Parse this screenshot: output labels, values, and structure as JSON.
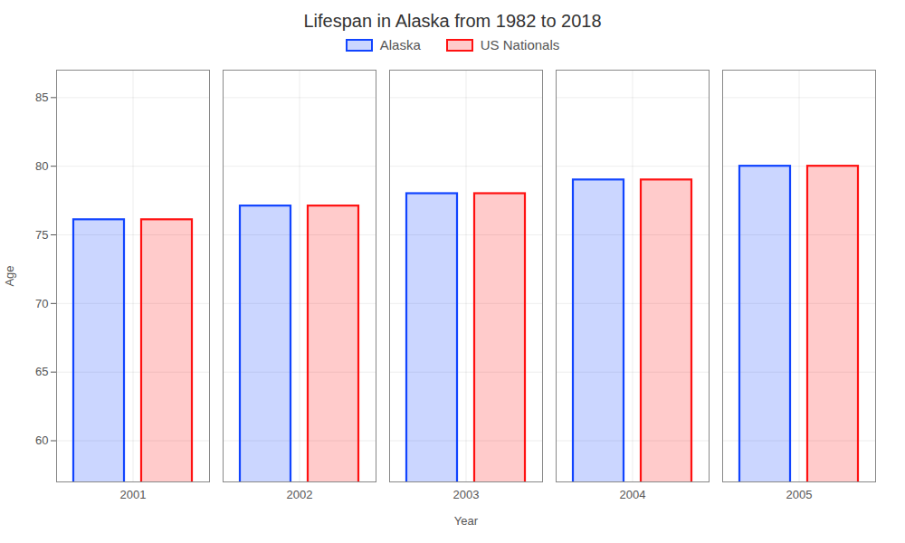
{
  "chart_data": {
    "type": "bar",
    "title": "Lifespan in Alaska from 1982 to 2018",
    "x_label": "Year",
    "y_label": "Age",
    "categories": [
      "2001",
      "2002",
      "2003",
      "2004",
      "2005"
    ],
    "series": [
      {
        "name": "Alaska",
        "color": "#1144ff",
        "values": [
          76.1,
          77.1,
          78.0,
          79.0,
          80.0
        ]
      },
      {
        "name": "US Nationals",
        "color": "#ff1111",
        "values": [
          76.1,
          77.1,
          78.0,
          79.0,
          80.0
        ]
      }
    ],
    "ylim": [
      57,
      87
    ],
    "yticks": [
      60,
      65,
      70,
      75,
      80,
      85
    ],
    "grid": true,
    "legend": "top"
  }
}
